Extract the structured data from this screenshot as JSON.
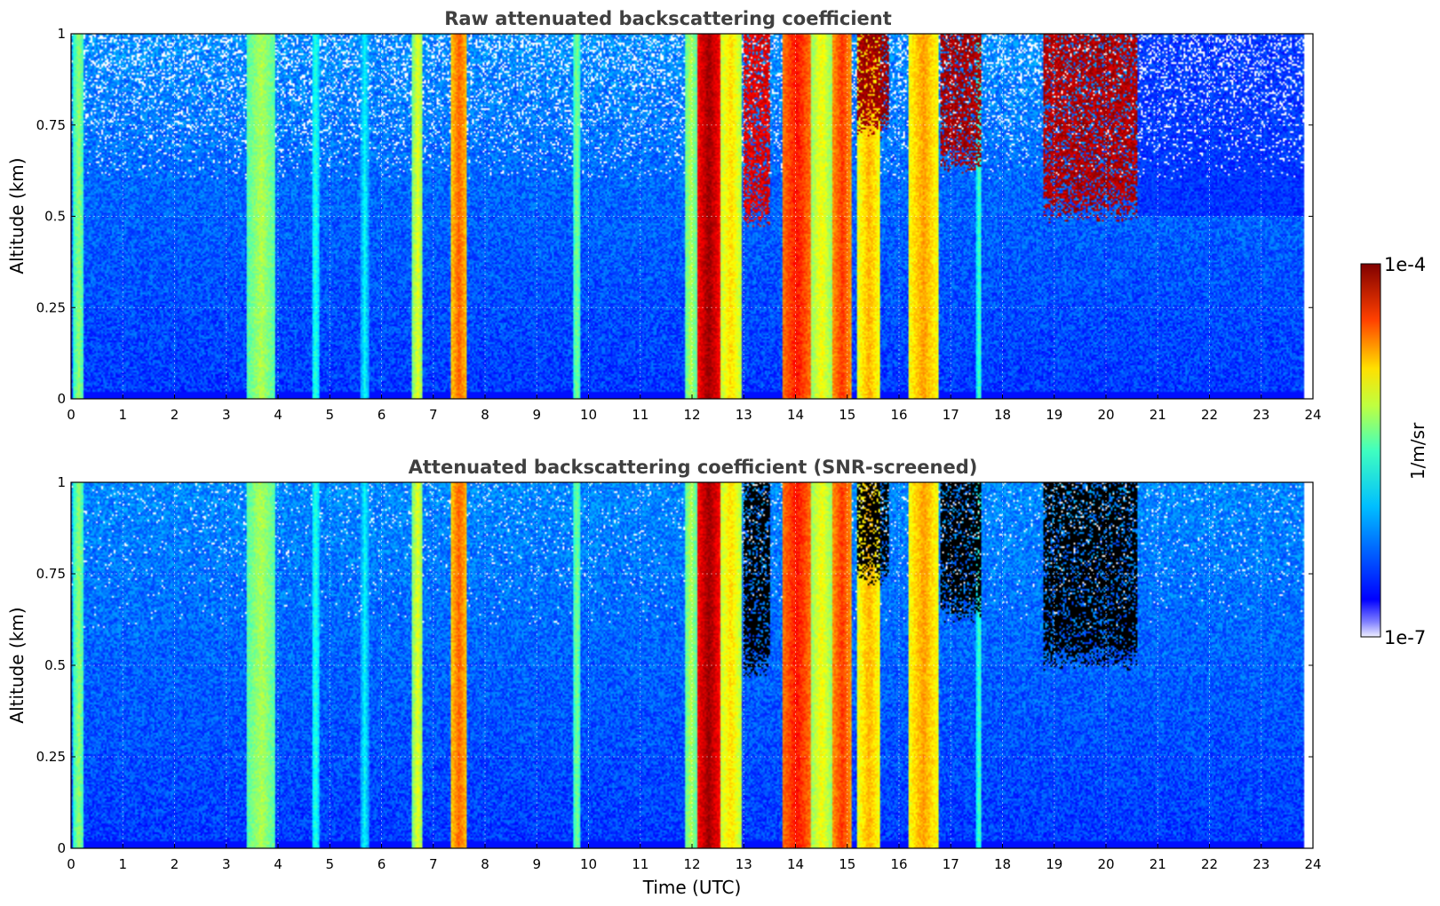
{
  "chart_data": [
    {
      "type": "heatmap",
      "title": "Raw attenuated backscattering coefficient",
      "xlabel": "",
      "ylabel": "Altitude (km)",
      "xlim": [
        0,
        24
      ],
      "ylim": [
        0,
        1
      ],
      "xticks": [
        "0",
        "1",
        "2",
        "3",
        "4",
        "5",
        "6",
        "7",
        "8",
        "9",
        "10",
        "11",
        "12",
        "13",
        "14",
        "15",
        "16",
        "17",
        "18",
        "19",
        "20",
        "21",
        "22",
        "23",
        "24"
      ],
      "yticks": [
        "0",
        "0.25",
        "0.5",
        "0.75",
        "1"
      ],
      "grid": true,
      "data_end_hour": 23.83,
      "background_level": 0.18,
      "vertical_features": [
        {
          "start": 0.05,
          "end": 0.25,
          "level": 0.52
        },
        {
          "start": 3.4,
          "end": 3.95,
          "level": 0.55
        },
        {
          "start": 4.65,
          "end": 4.8,
          "level": 0.42
        },
        {
          "start": 5.6,
          "end": 5.75,
          "level": 0.38
        },
        {
          "start": 6.6,
          "end": 6.8,
          "level": 0.6
        },
        {
          "start": 7.35,
          "end": 7.65,
          "level": 0.78
        },
        {
          "start": 9.7,
          "end": 9.85,
          "level": 0.5
        },
        {
          "start": 11.85,
          "end": 12.1,
          "level": 0.55
        },
        {
          "start": 12.1,
          "end": 12.55,
          "level": 0.97
        },
        {
          "start": 12.55,
          "end": 12.95,
          "level": 0.66
        },
        {
          "start": 13.75,
          "end": 14.3,
          "level": 0.86
        },
        {
          "start": 14.3,
          "end": 14.7,
          "level": 0.62
        },
        {
          "start": 14.7,
          "end": 15.1,
          "level": 0.82
        },
        {
          "start": 15.2,
          "end": 15.65,
          "level": 0.7
        },
        {
          "start": 16.2,
          "end": 16.75,
          "level": 0.72
        },
        {
          "start": 17.5,
          "end": 17.6,
          "level": 0.45
        }
      ],
      "cloud_features": [
        {
          "start": 13.0,
          "end": 13.5,
          "base_km": 0.5,
          "level": 0.9
        },
        {
          "start": 15.2,
          "end": 15.8,
          "base_km": 0.75,
          "level": 0.97
        },
        {
          "start": 16.8,
          "end": 17.6,
          "base_km": 0.65,
          "level": 0.96
        },
        {
          "start": 18.8,
          "end": 20.6,
          "base_km": 0.52,
          "level": 0.95
        }
      ]
    },
    {
      "type": "heatmap",
      "title": "Attenuated backscattering coefficient (SNR-screened)",
      "xlabel": "Time (UTC)",
      "ylabel": "Altitude (km)",
      "xlim": [
        0,
        24
      ],
      "ylim": [
        0,
        1
      ],
      "xticks": [
        "0",
        "1",
        "2",
        "3",
        "4",
        "5",
        "6",
        "7",
        "8",
        "9",
        "10",
        "11",
        "12",
        "13",
        "14",
        "15",
        "16",
        "17",
        "18",
        "19",
        "20",
        "21",
        "22",
        "23",
        "24"
      ],
      "yticks": [
        "0",
        "0.25",
        "0.5",
        "0.75",
        "1"
      ],
      "grid": true,
      "data_end_hour": 23.83,
      "background_level": 0.2,
      "screened_color": "#000000"
    }
  ],
  "colorbar": {
    "label": "1/m/sr",
    "max_label": "1e-4",
    "min_label": "1e-7",
    "colormap": "jet"
  }
}
